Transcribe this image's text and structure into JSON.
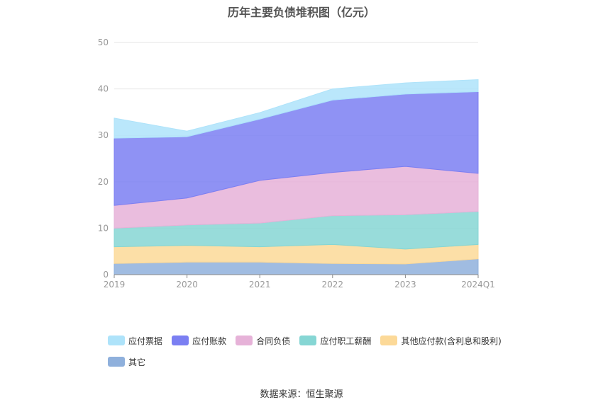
{
  "chart_data": {
    "type": "area",
    "stacked": true,
    "title": "历年主要负债堆积图（亿元）",
    "x": [
      "2019",
      "2020",
      "2021",
      "2022",
      "2023",
      "2024Q1"
    ],
    "ylim": [
      0,
      50
    ],
    "yticks": [
      0,
      10,
      20,
      30,
      40,
      50
    ],
    "grid": true,
    "legend_position": "bottom",
    "series": [
      {
        "name": "其它",
        "color": "#8fb0dc",
        "values": [
          2.4,
          2.7,
          2.7,
          2.4,
          2.3,
          3.4
        ]
      },
      {
        "name": "其他应付款(含利息和股利)",
        "color": "#fcd998",
        "values": [
          3.6,
          3.6,
          3.3,
          4.1,
          3.2,
          3.1
        ]
      },
      {
        "name": "应付职工薪酬",
        "color": "#86d6d4",
        "values": [
          4.0,
          4.4,
          5.1,
          6.2,
          7.4,
          7.1
        ]
      },
      {
        "name": "合同负债",
        "color": "#e6b2d8",
        "values": [
          4.9,
          5.8,
          9.2,
          9.3,
          10.4,
          8.2
        ]
      },
      {
        "name": "应付账款",
        "color": "#7b7ff2",
        "values": [
          14.5,
          13.2,
          13.2,
          15.6,
          15.6,
          17.6
        ]
      },
      {
        "name": "应付票据",
        "color": "#aee3fa",
        "values": [
          4.3,
          1.2,
          1.4,
          2.4,
          2.4,
          2.6
        ]
      }
    ]
  },
  "legend": {
    "items": [
      {
        "label": "应付票据",
        "color": "#aee3fa"
      },
      {
        "label": "应付账款",
        "color": "#7b7ff2"
      },
      {
        "label": "合同负债",
        "color": "#e6b2d8"
      },
      {
        "label": "应付职工薪酬",
        "color": "#86d6d4"
      },
      {
        "label": "其他应付款(含利息和股利)",
        "color": "#fcd998"
      },
      {
        "label": "其它",
        "color": "#8fb0dc"
      }
    ]
  },
  "footer": {
    "source": "数据来源：恒生聚源"
  }
}
